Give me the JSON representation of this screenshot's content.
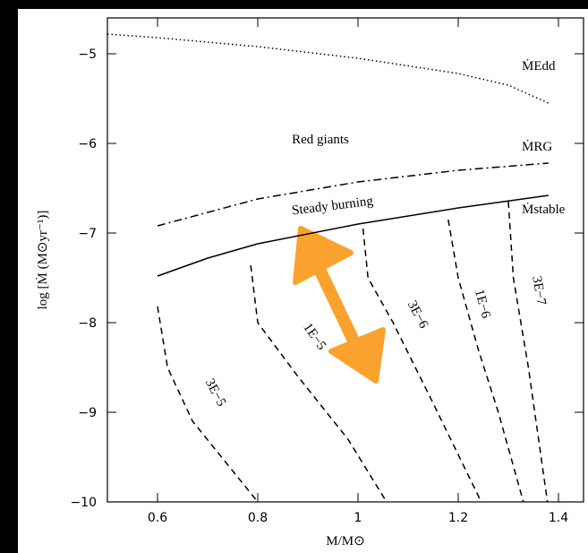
{
  "chart_data": {
    "type": "line",
    "x_label": "M/M⊙",
    "y_label": "log [Ṁ (M⊙yr⁻¹)]",
    "annotations": [
      "Red giants",
      "Steady burning"
    ],
    "xlim": [
      0.5,
      1.45
    ],
    "ylim": [
      -10,
      -4.6
    ],
    "xticks": [
      0.6,
      0.8,
      1,
      1.2,
      1.4
    ],
    "yticks": [
      {
        "value": -10,
        "label": "−10"
      },
      {
        "value": -9,
        "label": "−9"
      },
      {
        "value": -8,
        "label": "−8"
      },
      {
        "value": -7,
        "label": "−7"
      },
      {
        "value": -6,
        "label": "−6"
      },
      {
        "value": -5,
        "label": "−5"
      }
    ],
    "series": [
      {
        "name": "ṀEdd",
        "color": "#000000",
        "style": "dotted",
        "x": [
          0.5,
          0.6,
          0.8,
          1.0,
          1.2,
          1.3,
          1.38
        ],
        "values": [
          -4.78,
          -4.82,
          -4.92,
          -5.05,
          -5.22,
          -5.35,
          -5.55
        ]
      },
      {
        "name": "ṀRG",
        "color": "#000000",
        "style": "dashdot",
        "x": [
          0.6,
          0.8,
          1.0,
          1.2,
          1.38
        ],
        "values": [
          -6.92,
          -6.62,
          -6.43,
          -6.3,
          -6.22
        ]
      },
      {
        "name": "Ṁstable",
        "color": "#000000",
        "style": "solid",
        "x": [
          0.6,
          0.7,
          0.8,
          1.0,
          1.2,
          1.38
        ],
        "values": [
          -7.48,
          -7.28,
          -7.12,
          -6.9,
          -6.72,
          -6.58
        ]
      },
      {
        "name": "3E−5",
        "color": "#000000",
        "style": "dashed",
        "x": [
          0.6,
          0.62,
          0.67,
          0.8
        ],
        "values": [
          -7.82,
          -8.5,
          -9.1,
          -10
        ]
      },
      {
        "name": "1E−5",
        "color": "#000000",
        "style": "dashed",
        "x": [
          0.786,
          0.8,
          0.88,
          0.98,
          1.057
        ],
        "values": [
          -7.36,
          -8.0,
          -8.6,
          -9.3,
          -10
        ]
      },
      {
        "name": "3E−6",
        "color": "#000000",
        "style": "dashed",
        "x": [
          1.01,
          1.02,
          1.07,
          1.15,
          1.246
        ],
        "values": [
          -6.95,
          -7.5,
          -8.0,
          -8.9,
          -10
        ]
      },
      {
        "name": "1E−6",
        "color": "#000000",
        "style": "dashed",
        "x": [
          1.18,
          1.2,
          1.24,
          1.28,
          1.33
        ],
        "values": [
          -6.85,
          -7.5,
          -8.3,
          -9.0,
          -10
        ]
      },
      {
        "name": "3E−7",
        "color": "#000000",
        "style": "dashed",
        "x": [
          1.3,
          1.31,
          1.34,
          1.378
        ],
        "values": [
          -6.65,
          -7.5,
          -8.5,
          -10
        ]
      }
    ]
  }
}
